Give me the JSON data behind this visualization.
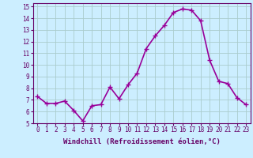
{
  "x": [
    0,
    1,
    2,
    3,
    4,
    5,
    6,
    7,
    8,
    9,
    10,
    11,
    12,
    13,
    14,
    15,
    16,
    17,
    18,
    19,
    20,
    21,
    22,
    23
  ],
  "y": [
    7.3,
    6.7,
    6.7,
    6.9,
    6.1,
    5.2,
    6.5,
    6.6,
    8.1,
    7.1,
    8.3,
    9.3,
    11.4,
    12.5,
    13.4,
    14.5,
    14.8,
    14.7,
    13.8,
    10.4,
    8.6,
    8.4,
    7.2,
    6.6
  ],
  "line_color": "#990099",
  "marker": "+",
  "marker_size": 4,
  "xlim": [
    -0.5,
    23.5
  ],
  "ylim": [
    5,
    15.3
  ],
  "yticks": [
    5,
    6,
    7,
    8,
    9,
    10,
    11,
    12,
    13,
    14,
    15
  ],
  "xticks": [
    0,
    1,
    2,
    3,
    4,
    5,
    6,
    7,
    8,
    9,
    10,
    11,
    12,
    13,
    14,
    15,
    16,
    17,
    18,
    19,
    20,
    21,
    22,
    23
  ],
  "xlabel": "Windchill (Refroidissement éolien,°C)",
  "background_color": "#cceeff",
  "grid_color": "#aacccc",
  "line_width": 1.2,
  "tick_fontsize": 5.5,
  "xlabel_fontsize": 6.5
}
